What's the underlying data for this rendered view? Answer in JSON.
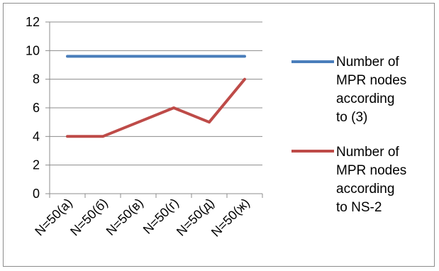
{
  "chart_data": {
    "type": "line",
    "categories": [
      "N=50(а)",
      "N=50(б)",
      "N=50(в)",
      "N=50(г)",
      "N=50(д)",
      "N=50(ж)"
    ],
    "ylim": [
      0,
      12
    ],
    "yticks": [
      0,
      2,
      4,
      6,
      8,
      10,
      12
    ],
    "grid": true,
    "legend_position": "right",
    "series": [
      {
        "name": "Number of MPR nodes according to (3)",
        "legend_lines": [
          "Number of",
          "MPR nodes",
          "according",
          "to (3)"
        ],
        "color": "#4a7ebb",
        "values": [
          9.6,
          9.6,
          9.6,
          9.6,
          9.6,
          9.6
        ]
      },
      {
        "name": "Number of MPR nodes according to NS-2",
        "legend_lines": [
          "Number of",
          "MPR nodes",
          "according",
          "to NS-2"
        ],
        "color": "#be4b48",
        "values": [
          4,
          4,
          5,
          6,
          5,
          8
        ]
      }
    ]
  }
}
